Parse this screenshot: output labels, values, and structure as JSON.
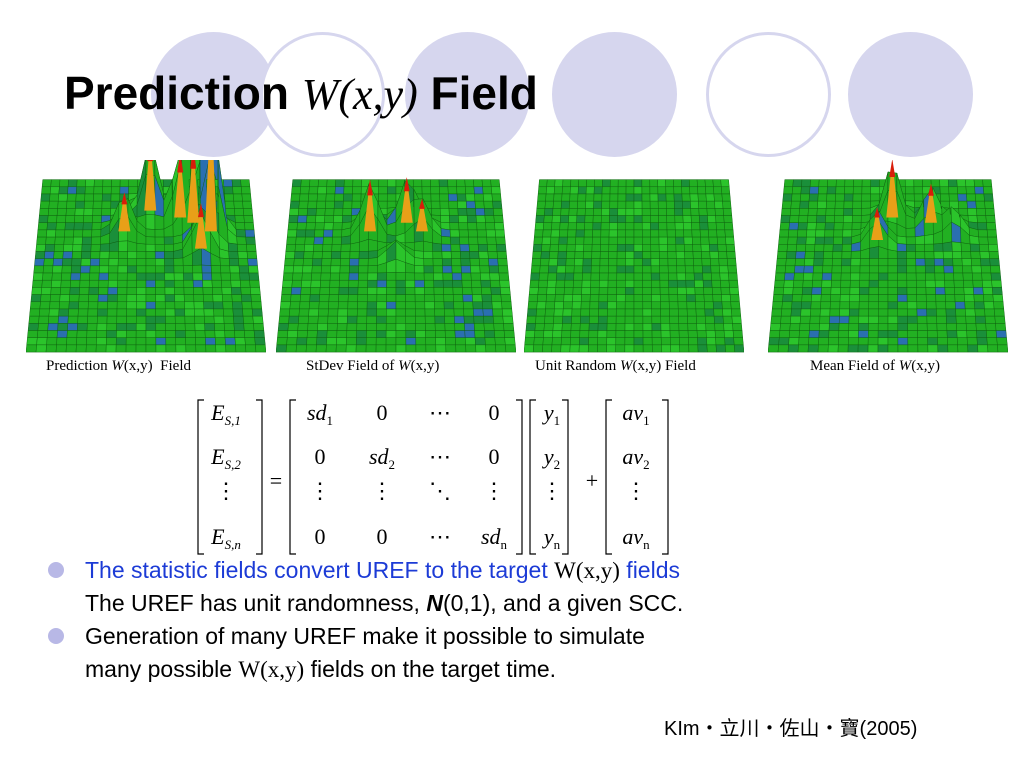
{
  "slide": {
    "title_prefix": "Prediction ",
    "title_math": "W(x,y)",
    "title_suffix": " Field"
  },
  "panels": [
    {
      "caption_pre": "Prediction ",
      "caption_math": "W",
      "caption_args": "(x,y)",
      "caption_post": "  Field"
    },
    {
      "caption_pre": "StDev Field of ",
      "caption_math": "W",
      "caption_args": "(x,y)",
      "caption_post": ""
    },
    {
      "caption_pre": "Unit Random ",
      "caption_math": "W",
      "caption_args": "(x,y)",
      "caption_post": " Field"
    },
    {
      "caption_pre": "Mean Field of ",
      "caption_math": "W",
      "caption_args": "(x,y)",
      "caption_post": ""
    }
  ],
  "equation": {
    "lhs": [
      "E_{S,1}",
      "E_{S,2}",
      "⋮",
      "E_{S,n}"
    ],
    "matrix": [
      [
        "sd_1",
        "0",
        "⋯",
        "0"
      ],
      [
        "0",
        "sd_2",
        "⋯",
        "0"
      ],
      [
        "⋮",
        "⋮",
        "⋱",
        "⋮"
      ],
      [
        "0",
        "0",
        "⋯",
        "sd_n"
      ]
    ],
    "y": [
      "y_1",
      "y_2",
      "⋮",
      "y_n"
    ],
    "av": [
      "av_1",
      "av_2",
      "⋮",
      "av_n"
    ],
    "equals": "=",
    "plus": "+"
  },
  "bullets": [
    {
      "line1_a": "The statistic fields convert UREF to the target ",
      "line1_math": "W(x,y)",
      "line1_b": " fields",
      "line2_a": "The UREF has unit randomness, ",
      "line2_bold": "N",
      "line2_b": "(0,1), and a given SCC."
    },
    {
      "line1": "Generation of many UREF make it possible to simulate",
      "line2_a": "many possible ",
      "line2_math": "W(x,y)",
      "line2_b": " fields on the target time."
    }
  ],
  "citation": "KIm・立川・佐山・寶(2005)",
  "colors": {
    "accent_text": "#1c3bd6",
    "decor_circle": "#d6d6ee",
    "bullet_dot": "#b8b8e6",
    "surface_green": "#22b022",
    "peak_red": "#d81d0a"
  }
}
